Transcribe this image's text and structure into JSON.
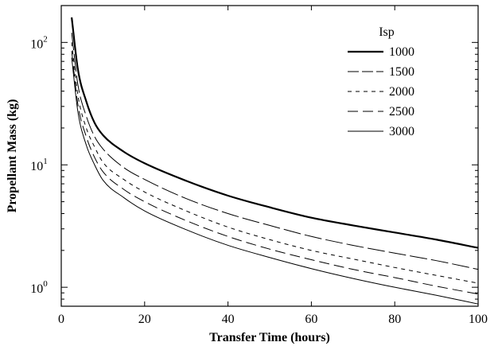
{
  "chart_data": {
    "type": "line",
    "title": "",
    "xlabel": "Transfer Time (hours)",
    "ylabel": "Propellant Mass (kg)",
    "xlim": [
      0,
      100
    ],
    "ylim": [
      0.7,
      200
    ],
    "yscale": "log",
    "grid": false,
    "x_ticks": [
      0,
      20,
      40,
      60,
      80,
      100
    ],
    "y_ticks": [
      {
        "value": 1,
        "base": "10",
        "exp": "0"
      },
      {
        "value": 10,
        "base": "10",
        "exp": "1"
      },
      {
        "value": 100,
        "base": "10",
        "exp": "2"
      }
    ],
    "legend": {
      "title": "Isp",
      "placement": "top-right"
    },
    "x": [
      2.5,
      4,
      6,
      8,
      10,
      15,
      20,
      30,
      40,
      50,
      60,
      70,
      80,
      90,
      100
    ],
    "series": [
      {
        "name": "1000",
        "style": "solid-thick",
        "values": [
          160,
          60,
          33,
          22,
          17.5,
          12.8,
          10.3,
          7.4,
          5.6,
          4.5,
          3.7,
          3.2,
          2.8,
          2.45,
          2.1
        ]
      },
      {
        "name": "1500",
        "style": "dash-long",
        "values": [
          120,
          45,
          25,
          17,
          13.5,
          9.5,
          7.6,
          5.3,
          4.0,
          3.2,
          2.6,
          2.2,
          1.9,
          1.65,
          1.4
        ]
      },
      {
        "name": "2000",
        "style": "dash-short",
        "values": [
          100,
          37,
          20,
          14,
          10.5,
          7.6,
          6.0,
          4.2,
          3.1,
          2.45,
          2.0,
          1.7,
          1.45,
          1.25,
          1.08
        ]
      },
      {
        "name": "2500",
        "style": "dash-medium",
        "values": [
          85,
          31,
          17,
          11.5,
          8.8,
          6.3,
          5.0,
          3.5,
          2.6,
          2.05,
          1.68,
          1.4,
          1.2,
          1.02,
          0.88
        ]
      },
      {
        "name": "3000",
        "style": "solid-thin",
        "values": [
          75,
          27,
          14.5,
          10,
          7.5,
          5.4,
          4.2,
          2.95,
          2.2,
          1.75,
          1.42,
          1.18,
          1.0,
          0.86,
          0.73
        ]
      }
    ]
  }
}
